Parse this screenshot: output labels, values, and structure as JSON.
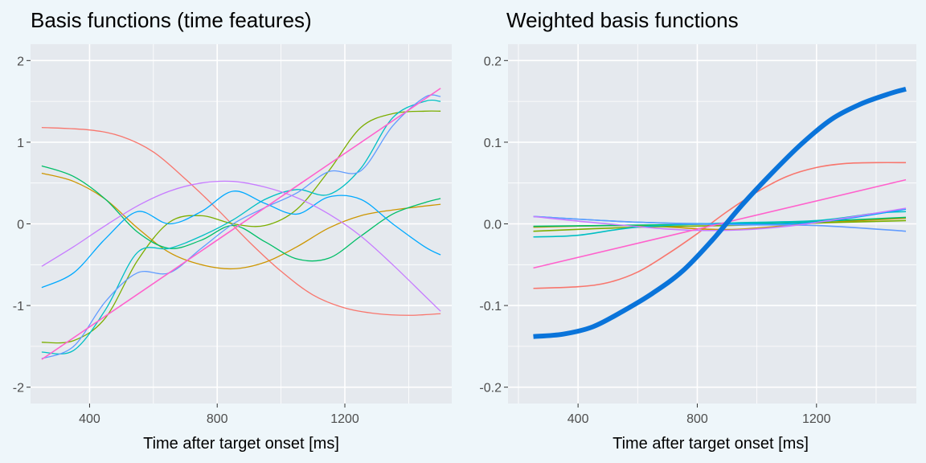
{
  "chart_data": [
    {
      "type": "line",
      "title": "Basis functions (time features)",
      "xlabel": "Time after target onset [ms]",
      "ylabel": "",
      "xlim": [
        215,
        1535
      ],
      "ylim": [
        -2.2,
        2.2
      ],
      "x_ticks": [
        400,
        800,
        1200
      ],
      "y_ticks": [
        -2,
        -1,
        0,
        1,
        2
      ],
      "y_tick_labels": [
        "-2",
        "-1",
        "0",
        "1",
        "2"
      ],
      "grid": true,
      "series": [
        {
          "color": "#F8766D",
          "x": [
            250,
            400,
            500,
            600,
            700,
            800,
            900,
            1000,
            1100,
            1200,
            1300,
            1400,
            1500
          ],
          "y": [
            1.18,
            1.15,
            1.07,
            0.88,
            0.55,
            0.18,
            -0.22,
            -0.58,
            -0.87,
            -1.03,
            -1.1,
            -1.12,
            -1.1
          ]
        },
        {
          "color": "#CD9600",
          "x": [
            250,
            350,
            450,
            550,
            650,
            750,
            850,
            950,
            1050,
            1150,
            1250,
            1350,
            1500
          ],
          "y": [
            0.62,
            0.52,
            0.3,
            -0.05,
            -0.35,
            -0.5,
            -0.55,
            -0.47,
            -0.28,
            -0.05,
            0.1,
            0.17,
            0.24
          ]
        },
        {
          "color": "#7CAE00",
          "x": [
            250,
            350,
            450,
            550,
            650,
            750,
            850,
            950,
            1050,
            1150,
            1250,
            1350,
            1450,
            1500
          ],
          "y": [
            -1.45,
            -1.43,
            -1.15,
            -0.45,
            0.02,
            0.1,
            0.0,
            -0.02,
            0.18,
            0.65,
            1.18,
            1.35,
            1.38,
            1.38
          ]
        },
        {
          "color": "#00BE67",
          "x": [
            250,
            350,
            450,
            550,
            650,
            750,
            850,
            950,
            1050,
            1150,
            1250,
            1350,
            1450,
            1500
          ],
          "y": [
            0.71,
            0.58,
            0.3,
            -0.1,
            -0.3,
            -0.2,
            -0.02,
            -0.22,
            -0.43,
            -0.42,
            -0.15,
            0.12,
            0.26,
            0.31
          ]
        },
        {
          "color": "#00BFC4",
          "x": [
            250,
            350,
            450,
            550,
            650,
            750,
            850,
            950,
            1050,
            1150,
            1250,
            1350,
            1450,
            1500
          ],
          "y": [
            -1.57,
            -1.55,
            -1.05,
            -0.35,
            -0.3,
            -0.15,
            0.05,
            0.3,
            0.42,
            0.36,
            0.68,
            1.3,
            1.5,
            1.5
          ]
        },
        {
          "color": "#00A9FF",
          "x": [
            250,
            350,
            450,
            550,
            650,
            750,
            850,
            950,
            1050,
            1150,
            1250,
            1350,
            1450,
            1500
          ],
          "y": [
            -0.78,
            -0.6,
            -0.18,
            0.15,
            0.0,
            0.15,
            0.4,
            0.25,
            0.12,
            0.33,
            0.3,
            0.0,
            -0.28,
            -0.38
          ]
        },
        {
          "color": "#619CFF",
          "x": [
            250,
            350,
            450,
            550,
            650,
            750,
            850,
            950,
            1050,
            1150,
            1250,
            1350,
            1450,
            1500
          ],
          "y": [
            -1.65,
            -1.5,
            -0.95,
            -0.6,
            -0.6,
            -0.3,
            0.0,
            0.2,
            0.38,
            0.64,
            0.65,
            1.2,
            1.55,
            1.56
          ]
        },
        {
          "color": "#C77CFF",
          "x": [
            250,
            350,
            450,
            550,
            650,
            750,
            850,
            950,
            1050,
            1150,
            1250,
            1350,
            1450,
            1500
          ],
          "y": [
            -0.52,
            -0.28,
            -0.02,
            0.22,
            0.4,
            0.5,
            0.52,
            0.45,
            0.32,
            0.12,
            -0.15,
            -0.5,
            -0.88,
            -1.07
          ]
        },
        {
          "color": "#FF61CC",
          "x": [
            250,
            1500
          ],
          "y": [
            -1.66,
            1.66
          ]
        }
      ]
    },
    {
      "type": "line",
      "title": "Weighted basis functions",
      "xlabel": "Time after target onset [ms]",
      "ylabel": "",
      "xlim": [
        165,
        1535
      ],
      "ylim": [
        -0.22,
        0.22
      ],
      "x_ticks": [
        400,
        800,
        1200
      ],
      "y_ticks": [
        -0.2,
        -0.1,
        0.0,
        0.1,
        0.2
      ],
      "y_tick_labels": [
        "-0.2",
        "-0.1",
        "0.0",
        "0.1",
        "0.2"
      ],
      "grid": true,
      "series": [
        {
          "color": "#F8766D",
          "x": [
            250,
            400,
            500,
            600,
            700,
            800,
            900,
            1000,
            1100,
            1200,
            1300,
            1400,
            1500
          ],
          "y": [
            -0.079,
            -0.077,
            -0.072,
            -0.059,
            -0.037,
            -0.012,
            0.015,
            0.039,
            0.058,
            0.069,
            0.074,
            0.075,
            0.075
          ]
        },
        {
          "color": "#CD9600",
          "x": [
            250,
            600,
            900,
            1200,
            1500
          ],
          "y": [
            -0.004,
            -0.002,
            -0.007,
            0.001,
            0.007
          ]
        },
        {
          "color": "#7CAE00",
          "x": [
            250,
            600,
            900,
            1200,
            1500
          ],
          "y": [
            -0.009,
            -0.004,
            -0.002,
            0.001,
            0.004
          ]
        },
        {
          "color": "#00BE67",
          "x": [
            250,
            500,
            900,
            1200,
            1500
          ],
          "y": [
            -0.003,
            -0.002,
            0.0,
            0.003,
            0.008
          ]
        },
        {
          "color": "#00BFC4",
          "x": [
            250,
            400,
            600,
            900,
            1200,
            1400,
            1500
          ],
          "y": [
            -0.016,
            -0.014,
            -0.004,
            0.001,
            0.004,
            0.013,
            0.015
          ]
        },
        {
          "color": "#00A9FF",
          "x": [
            250,
            600,
            900,
            1200,
            1500
          ],
          "y": [
            0.009,
            0.002,
            0.0,
            0.002,
            0.018
          ]
        },
        {
          "color": "#619CFF",
          "x": [
            250,
            600,
            900,
            1200,
            1500
          ],
          "y": [
            0.009,
            0.002,
            -0.001,
            -0.002,
            -0.009
          ]
        },
        {
          "color": "#C77CFF",
          "x": [
            250,
            500,
            800,
            1100,
            1500
          ],
          "y": [
            0.009,
            0.0,
            -0.008,
            -0.003,
            0.019
          ]
        },
        {
          "color": "#FF61CC",
          "x": [
            250,
            1500
          ],
          "y": [
            -0.054,
            0.054
          ]
        },
        {
          "color": "#0A74DA",
          "x": [
            250,
            350,
            450,
            550,
            650,
            750,
            850,
            950,
            1050,
            1150,
            1250,
            1350,
            1450,
            1500
          ],
          "y": [
            -0.138,
            -0.135,
            -0.126,
            -0.107,
            -0.085,
            -0.058,
            -0.02,
            0.023,
            0.062,
            0.098,
            0.128,
            0.147,
            0.16,
            0.165
          ]
        }
      ]
    }
  ]
}
